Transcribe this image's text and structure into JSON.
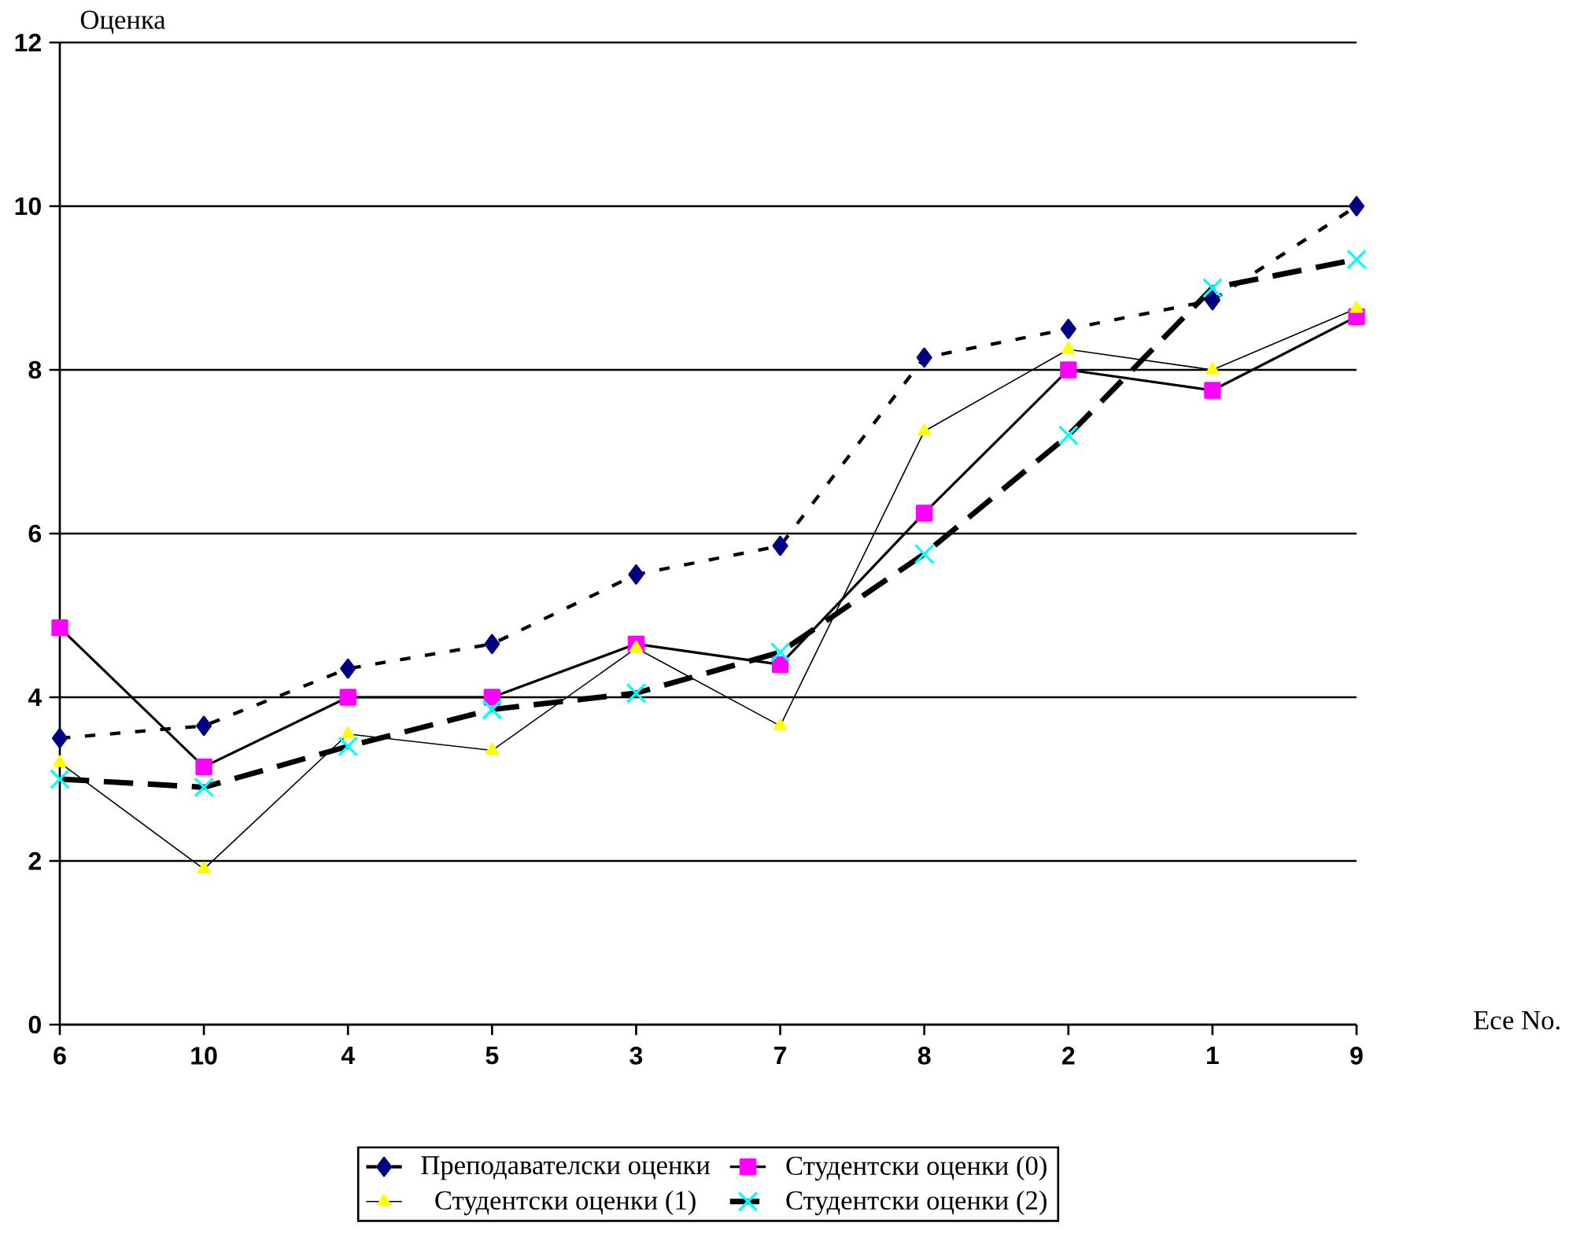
{
  "chart_data": {
    "type": "line",
    "xlabel": "Есе No.",
    "ylabel": "Оценка",
    "categories": [
      "6",
      "10",
      "4",
      "5",
      "3",
      "7",
      "8",
      "2",
      "1",
      "9"
    ],
    "series": [
      {
        "name": "Преподавателски оценки",
        "color": "#000080",
        "marker": "diamond",
        "line_style": "dotted",
        "values": [
          3.5,
          3.65,
          4.35,
          4.65,
          5.5,
          5.85,
          8.15,
          8.5,
          8.85,
          10
        ]
      },
      {
        "name": "Студентски оценки (0)",
        "color": "#ff00ff",
        "marker": "square",
        "line_style": "solid",
        "values": [
          4.85,
          3.15,
          4.0,
          4.0,
          4.65,
          4.4,
          6.25,
          8.0,
          7.75,
          8.65
        ]
      },
      {
        "name": "Студентски оценки (1)",
        "color": "#ffff00",
        "marker": "triangle",
        "line_style": "solid",
        "values": [
          3.2,
          1.9,
          3.55,
          3.35,
          4.6,
          3.65,
          7.25,
          8.25,
          8.0,
          8.75
        ]
      },
      {
        "name": "Студентски оценки (2)",
        "color": "#00ffff",
        "marker": "cross",
        "line_style": "dashed",
        "values": [
          3.0,
          2.9,
          3.4,
          3.85,
          4.05,
          4.55,
          5.75,
          7.2,
          9.0,
          9.35
        ]
      }
    ],
    "ylim": [
      0,
      12
    ],
    "yticks": [
      0,
      2,
      4,
      6,
      8,
      10,
      12
    ],
    "grid": "y",
    "legend": "bottom"
  }
}
